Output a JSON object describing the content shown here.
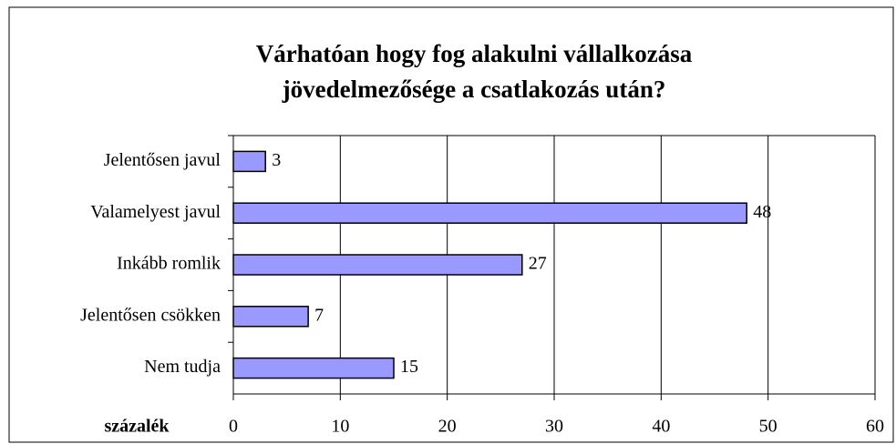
{
  "chart_data": {
    "type": "bar",
    "orientation": "horizontal",
    "title": [
      "Várhatóan hogy fog alakulni vállalkozása",
      "jövedelmezősége a csatlakozás után?"
    ],
    "xlabel": "százalék",
    "categories": [
      "Jelentősen javul",
      "Valamelyest javul",
      "Inkább romlik",
      "Jelentősen csökken",
      "Nem tudja"
    ],
    "values": [
      3,
      48,
      27,
      7,
      15
    ],
    "color": "#9999ff",
    "xlim": [
      0,
      60
    ],
    "xticks": [
      0,
      10,
      20,
      30,
      40,
      50,
      60
    ],
    "grid": true
  }
}
